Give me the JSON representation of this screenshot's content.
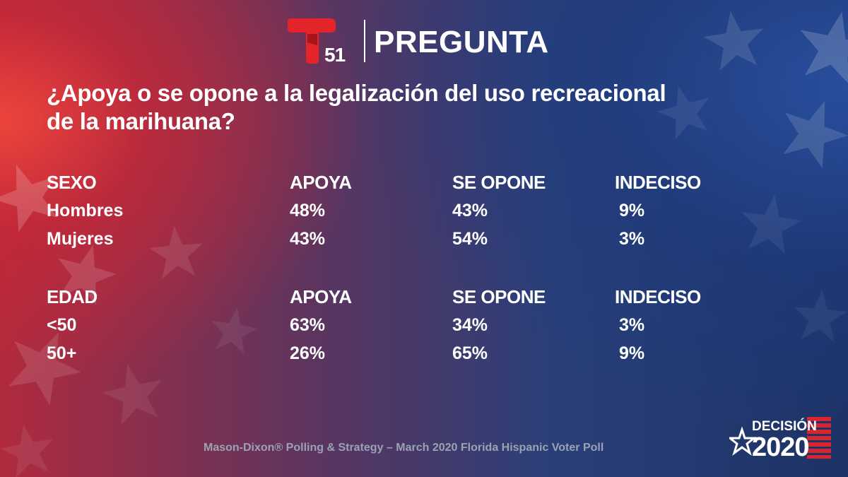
{
  "brand": {
    "channel_number": "51",
    "title": "PREGUNTA",
    "accent_color": "#e3242b"
  },
  "question": "¿Apoya o se opone a la legalización del uso recreacional de la marihuana?",
  "sections": [
    {
      "headers": [
        "SEXO",
        "APOYA",
        "SE OPONE",
        "INDECISO"
      ],
      "rows": [
        [
          "Hombres",
          "48%",
          "43%",
          "9%"
        ],
        [
          "Mujeres",
          "43%",
          "54%",
          "3%"
        ]
      ]
    },
    {
      "headers": [
        "EDAD",
        "APOYA",
        "SE OPONE",
        "INDECISO"
      ],
      "rows": [
        [
          "<50",
          "63%",
          "34%",
          "3%"
        ],
        [
          "50+",
          "26%",
          "65%",
          "9%"
        ]
      ]
    }
  ],
  "footer": "Mason-Dixon® Polling & Strategy – March 2020 Florida Hispanic Voter Poll",
  "badge": {
    "word": "DECISIÓN",
    "year": "2020"
  }
}
